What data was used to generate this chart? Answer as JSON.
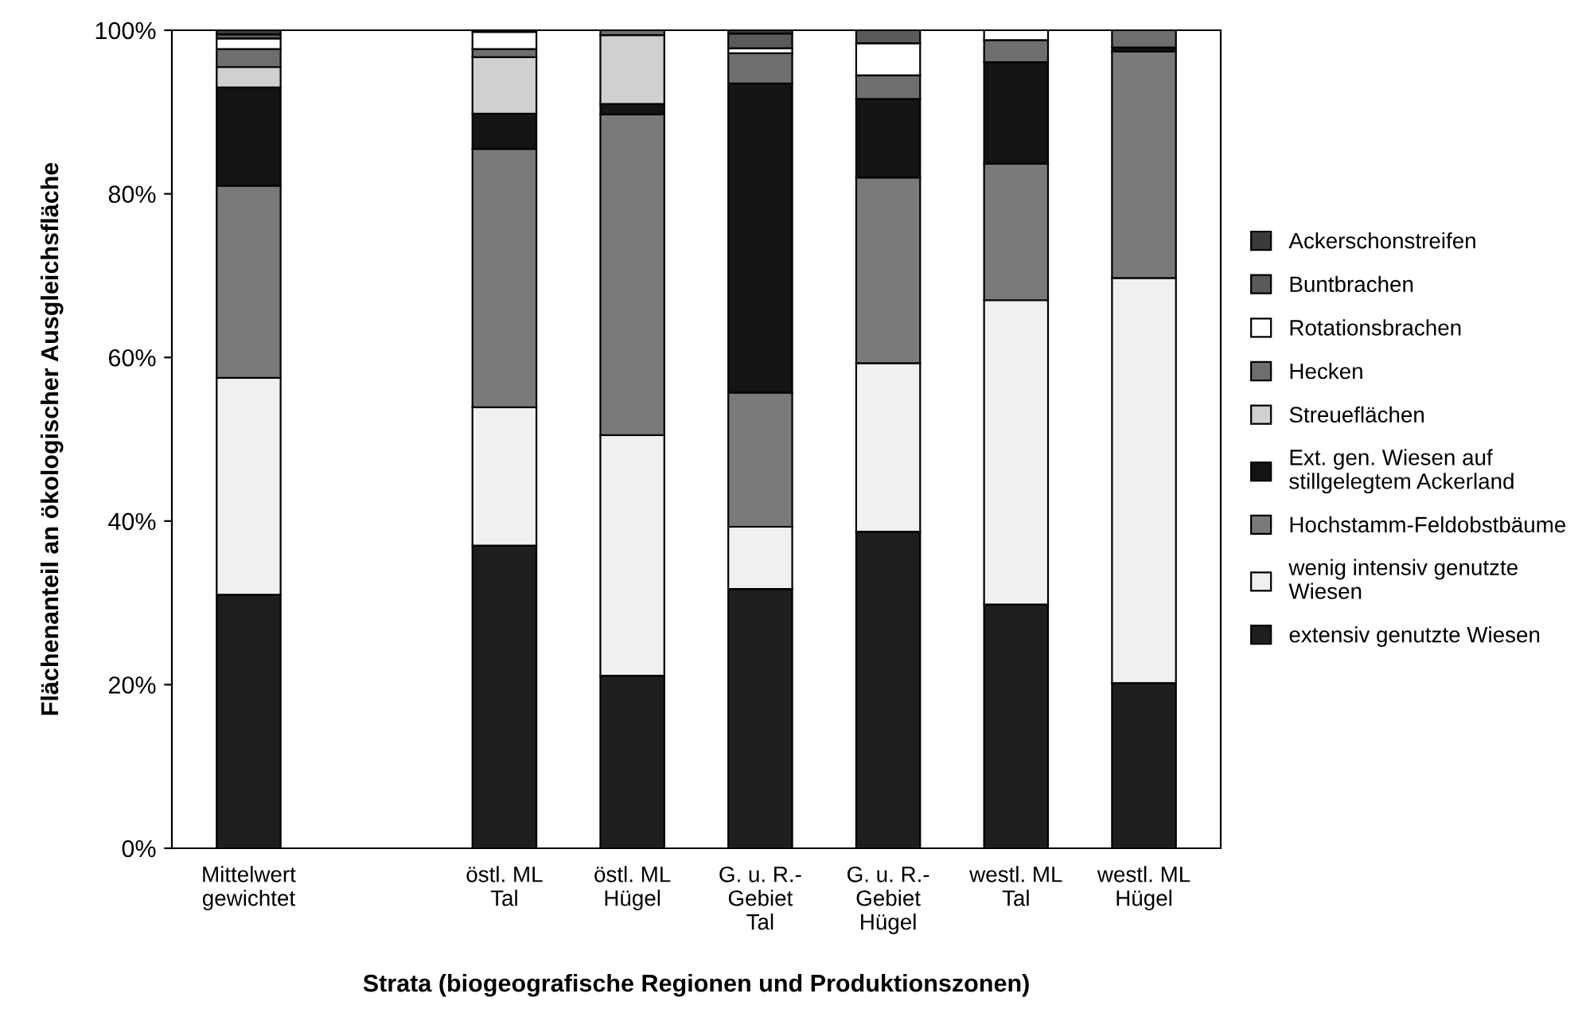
{
  "chart_data": {
    "type": "bar",
    "stacked": true,
    "xlabel": "Strata (biogeografische Regionen und Produktionszonen)",
    "ylabel": "Flächenanteil an ökologischer Ausgleichsfläche",
    "categories": [
      "Mittelwert\ngewichtet",
      null,
      "östl. ML\nTal",
      "östl. ML\nHügel",
      "G. u. R.-\nGebiet\nTal",
      "G. u. R.-\nGebiet\nHügel",
      "westl. ML\nTal",
      "westl. ML\nHügel"
    ],
    "series": [
      {
        "name": "extensiv genutzte Wiesen",
        "color": "#1e1e1e",
        "values": [
          31,
          null,
          37,
          21.1,
          31.7,
          38.7,
          29.8,
          20.2
        ]
      },
      {
        "name": "wenig intensiv genutzte\nWiesen",
        "color": "#f0f0f0",
        "values": [
          26.5,
          null,
          16.9,
          29.4,
          7.6,
          20.6,
          37.2,
          49.5
        ]
      },
      {
        "name": "Hochstamm-Feldobstbäume",
        "color": "#7a7a7a",
        "values": [
          23.5,
          null,
          31.6,
          39.2,
          16.4,
          22.7,
          16.7,
          27.7
        ]
      },
      {
        "name": "Ext. gen. Wiesen auf\nstillgelegtem Ackerland",
        "color": "#141414",
        "values": [
          12,
          null,
          4.3,
          1.3,
          37.8,
          9.6,
          12.4,
          0.5
        ]
      },
      {
        "name": "Streueflächen",
        "color": "#d0d0d0",
        "values": [
          2.5,
          null,
          6.9,
          8.4,
          0,
          0,
          0,
          0
        ]
      },
      {
        "name": "Hecken",
        "color": "#6e6e6e",
        "values": [
          2.2,
          null,
          1.0,
          0.6,
          3.7,
          2.9,
          2.7,
          2.1
        ]
      },
      {
        "name": "Rotationsbrachen",
        "color": "#ffffff",
        "values": [
          1.3,
          null,
          2.1,
          0,
          0.6,
          3.9,
          1.2,
          0
        ]
      },
      {
        "name": "Buntbrachen",
        "color": "#5a5a5a",
        "values": [
          0.5,
          null,
          0,
          0,
          1.8,
          1.6,
          0,
          0
        ]
      },
      {
        "name": "Ackerschonstreifen",
        "color": "#3a3a3a",
        "values": [
          0.5,
          null,
          0.2,
          0,
          0.4,
          0,
          0,
          0
        ]
      }
    ],
    "ylim": [
      0,
      100
    ],
    "yticks": [
      {
        "value": 0,
        "label": "0%"
      },
      {
        "value": 20,
        "label": "20%"
      },
      {
        "value": 40,
        "label": "40%"
      },
      {
        "value": 60,
        "label": "60%"
      },
      {
        "value": 80,
        "label": "80%"
      },
      {
        "value": 100,
        "label": "100%"
      }
    ],
    "grid": false,
    "legend": "right"
  }
}
